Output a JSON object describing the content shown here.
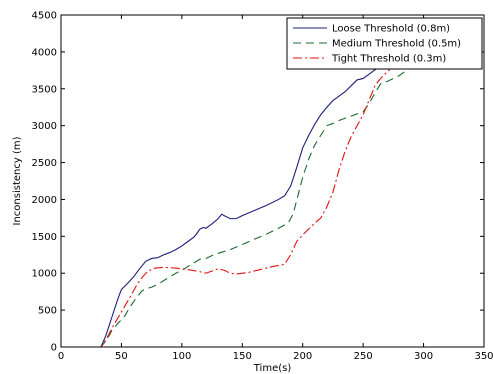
{
  "chart_data": {
    "type": "line",
    "title": "",
    "xlabel": "Time(s)",
    "ylabel": "Inconsistency (m)",
    "xlim": [
      0,
      350
    ],
    "ylim": [
      0,
      4500
    ],
    "xticks": [
      0,
      50,
      100,
      150,
      200,
      250,
      300,
      350
    ],
    "yticks": [
      0,
      500,
      1000,
      1500,
      2000,
      2500,
      3000,
      3500,
      4000,
      4500
    ],
    "grid": false,
    "legend_position": "top-right",
    "series": [
      {
        "name": "Loose Threshold (0.8m)",
        "color": "#1f1f7a",
        "dash": "solid",
        "points": [
          [
            0,
            0
          ],
          [
            33,
            0
          ],
          [
            37,
            150
          ],
          [
            42,
            400
          ],
          [
            47,
            650
          ],
          [
            50,
            780
          ],
          [
            55,
            860
          ],
          [
            60,
            950
          ],
          [
            65,
            1060
          ],
          [
            70,
            1160
          ],
          [
            75,
            1200
          ],
          [
            80,
            1210
          ],
          [
            85,
            1250
          ],
          [
            90,
            1280
          ],
          [
            95,
            1320
          ],
          [
            100,
            1370
          ],
          [
            105,
            1430
          ],
          [
            110,
            1490
          ],
          [
            112,
            1530
          ],
          [
            115,
            1600
          ],
          [
            118,
            1620
          ],
          [
            120,
            1610
          ],
          [
            125,
            1670
          ],
          [
            130,
            1740
          ],
          [
            133,
            1800
          ],
          [
            135,
            1780
          ],
          [
            140,
            1740
          ],
          [
            145,
            1740
          ],
          [
            150,
            1780
          ],
          [
            160,
            1850
          ],
          [
            170,
            1920
          ],
          [
            180,
            2000
          ],
          [
            185,
            2050
          ],
          [
            190,
            2180
          ],
          [
            195,
            2430
          ],
          [
            200,
            2700
          ],
          [
            205,
            2870
          ],
          [
            210,
            3020
          ],
          [
            215,
            3150
          ],
          [
            220,
            3250
          ],
          [
            225,
            3340
          ],
          [
            230,
            3400
          ],
          [
            235,
            3460
          ],
          [
            240,
            3540
          ],
          [
            245,
            3620
          ],
          [
            250,
            3640
          ],
          [
            255,
            3700
          ],
          [
            260,
            3760
          ],
          [
            262,
            3800
          ]
        ]
      },
      {
        "name": "Medium Threshold (0.5m)",
        "color": "#1e6b2e",
        "dash": "8,5",
        "points": [
          [
            0,
            0
          ],
          [
            33,
            0
          ],
          [
            38,
            100
          ],
          [
            42,
            220
          ],
          [
            47,
            320
          ],
          [
            52,
            400
          ],
          [
            57,
            540
          ],
          [
            62,
            660
          ],
          [
            67,
            760
          ],
          [
            70,
            790
          ],
          [
            75,
            810
          ],
          [
            80,
            850
          ],
          [
            85,
            900
          ],
          [
            90,
            950
          ],
          [
            95,
            1000
          ],
          [
            100,
            1040
          ],
          [
            105,
            1090
          ],
          [
            110,
            1140
          ],
          [
            115,
            1190
          ],
          [
            120,
            1200
          ],
          [
            125,
            1240
          ],
          [
            130,
            1270
          ],
          [
            140,
            1320
          ],
          [
            150,
            1390
          ],
          [
            160,
            1460
          ],
          [
            170,
            1530
          ],
          [
            180,
            1610
          ],
          [
            188,
            1680
          ],
          [
            192,
            1800
          ],
          [
            196,
            2050
          ],
          [
            200,
            2300
          ],
          [
            205,
            2550
          ],
          [
            210,
            2740
          ],
          [
            215,
            2870
          ],
          [
            220,
            3000
          ],
          [
            225,
            3030
          ],
          [
            230,
            3070
          ],
          [
            235,
            3100
          ],
          [
            240,
            3130
          ],
          [
            245,
            3160
          ],
          [
            250,
            3190
          ],
          [
            255,
            3300
          ],
          [
            260,
            3450
          ],
          [
            265,
            3580
          ],
          [
            270,
            3600
          ],
          [
            280,
            3680
          ],
          [
            290,
            3800
          ],
          [
            295,
            3830
          ]
        ]
      },
      {
        "name": "Tight Threshold (0.3m)",
        "color": "#e01010",
        "dash": "9,3,2,3",
        "points": [
          [
            0,
            0
          ],
          [
            33,
            0
          ],
          [
            38,
            120
          ],
          [
            43,
            280
          ],
          [
            48,
            420
          ],
          [
            53,
            560
          ],
          [
            58,
            700
          ],
          [
            63,
            850
          ],
          [
            68,
            960
          ],
          [
            72,
            1030
          ],
          [
            78,
            1070
          ],
          [
            85,
            1080
          ],
          [
            95,
            1070
          ],
          [
            105,
            1050
          ],
          [
            115,
            1020
          ],
          [
            120,
            1000
          ],
          [
            125,
            1030
          ],
          [
            130,
            1060
          ],
          [
            135,
            1040
          ],
          [
            140,
            1000
          ],
          [
            145,
            990
          ],
          [
            155,
            1010
          ],
          [
            165,
            1050
          ],
          [
            175,
            1090
          ],
          [
            185,
            1120
          ],
          [
            190,
            1250
          ],
          [
            195,
            1430
          ],
          [
            200,
            1520
          ],
          [
            205,
            1600
          ],
          [
            210,
            1680
          ],
          [
            215,
            1750
          ],
          [
            220,
            1900
          ],
          [
            225,
            2100
          ],
          [
            230,
            2400
          ],
          [
            235,
            2650
          ],
          [
            240,
            2850
          ],
          [
            245,
            3000
          ],
          [
            250,
            3150
          ],
          [
            255,
            3350
          ],
          [
            260,
            3550
          ],
          [
            265,
            3650
          ],
          [
            270,
            3730
          ],
          [
            272,
            3760
          ]
        ]
      }
    ]
  }
}
